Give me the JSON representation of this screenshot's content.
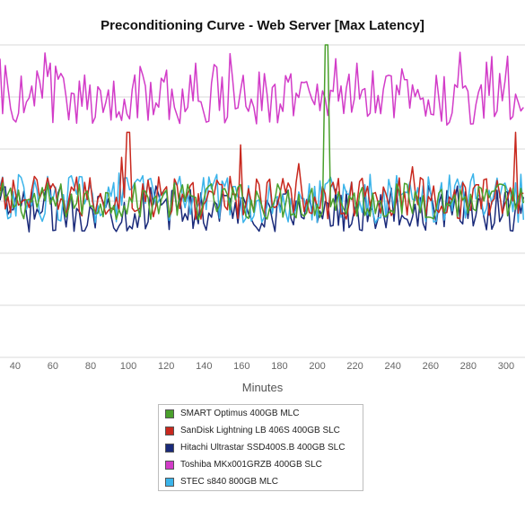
{
  "chart_data": {
    "type": "line",
    "title": "Preconditioning Curve - Web Server [Max Latency]",
    "xlabel": "Minutes",
    "ylabel": "",
    "x_ticks": [
      "40",
      "60",
      "80",
      "100",
      "120",
      "140",
      "160",
      "180",
      "200",
      "220",
      "240",
      "260",
      "280",
      "300"
    ],
    "xlim": [
      32,
      310
    ],
    "ylim": [
      0,
      1
    ],
    "grid": true,
    "legend_position": "bottom-center",
    "series": [
      {
        "name": "SMART Optimus 400GB MLC",
        "color": "#4aa02c",
        "values_approx": "mostly 0.45-0.58 with two very tall spikes near minute 204-206",
        "spikes": [
          [
            204,
            1.0
          ],
          [
            206,
            1.0
          ]
        ]
      },
      {
        "name": "SanDisk Lightning LB 406S 400GB SLC",
        "color": "#c8281e",
        "values_approx": "mostly 0.45-0.60 with spikes near minutes 96, 100, 160, 190, 250, 305",
        "spikes": [
          [
            96,
            0.64
          ],
          [
            100,
            0.72
          ],
          [
            160,
            0.68
          ],
          [
            190,
            0.62
          ],
          [
            250,
            0.61
          ],
          [
            305,
            0.72
          ]
        ]
      },
      {
        "name": "Hitachi Ultrastar SSD400S.B 400GB SLC",
        "color": "#1a2a7a",
        "values_approx": "mostly 0.40-0.56"
      },
      {
        "name": "Toshiba MKx001GRZB 400GB SLC",
        "color": "#d23cc8",
        "values_approx": "mostly 0.75-0.92 with peaks up to ~0.98"
      },
      {
        "name": "STEC s840 800GB MLC",
        "color": "#3bb4ea",
        "values_approx": "mostly 0.42-0.60"
      }
    ]
  }
}
